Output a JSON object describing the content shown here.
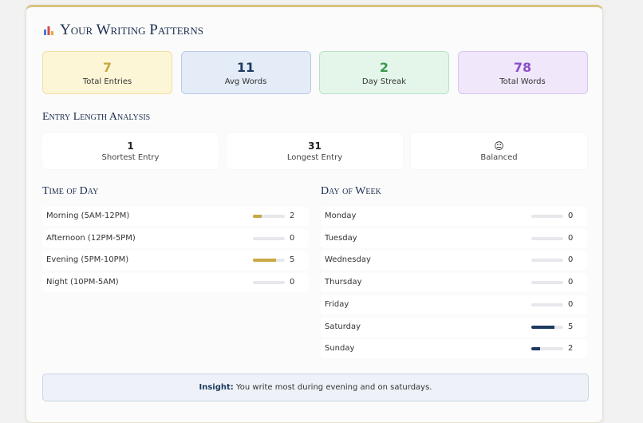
{
  "header": {
    "title": "Your Writing Patterns"
  },
  "stats": [
    {
      "value": 7,
      "label": "Total Entries"
    },
    {
      "value": 11,
      "label": "Avg Words"
    },
    {
      "value": 2,
      "label": "Day Streak"
    },
    {
      "value": 78,
      "label": "Total Words"
    }
  ],
  "length_analysis": {
    "title": "Entry Length Analysis",
    "items": [
      {
        "value": "1",
        "label": "Shortest Entry"
      },
      {
        "value": "31",
        "label": "Longest Entry"
      },
      {
        "value": "😐",
        "label": "Balanced"
      }
    ]
  },
  "time_of_day": {
    "title": "Time of Day",
    "rows": [
      {
        "label": "Morning (5AM-12PM)",
        "value": 2
      },
      {
        "label": "Afternoon (12PM-5PM)",
        "value": 0
      },
      {
        "label": "Evening (5PM-10PM)",
        "value": 5
      },
      {
        "label": "Night (10PM-5AM)",
        "value": 0
      }
    ]
  },
  "day_of_week": {
    "title": "Day of Week",
    "rows": [
      {
        "label": "Monday",
        "value": 0
      },
      {
        "label": "Tuesday",
        "value": 0
      },
      {
        "label": "Wednesday",
        "value": 0
      },
      {
        "label": "Thursday",
        "value": 0
      },
      {
        "label": "Friday",
        "value": 0
      },
      {
        "label": "Saturday",
        "value": 5
      },
      {
        "label": "Sunday",
        "value": 2
      }
    ]
  },
  "insight": {
    "label": "Insight:",
    "text": "You write most during evening and on saturdays."
  }
}
